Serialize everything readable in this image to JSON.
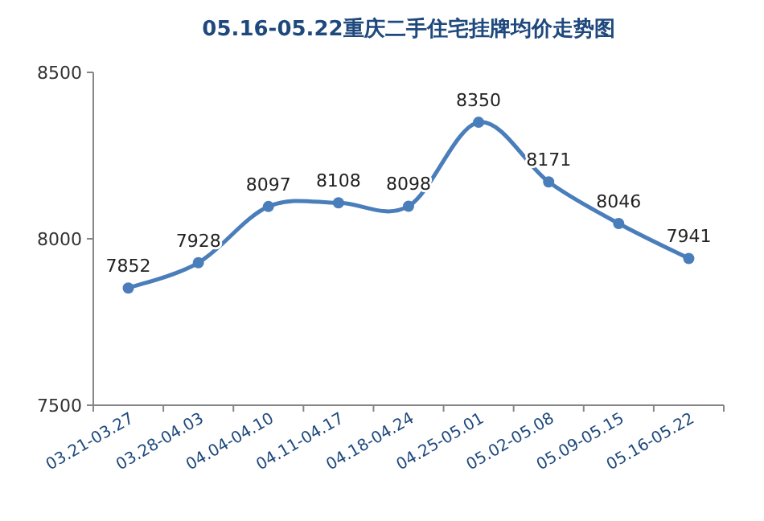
{
  "chart_data": {
    "type": "line",
    "title": "05.16-05.22重庆二手住宅挂牌均价走势图",
    "categories": [
      "03.21-03.27",
      "03.28-04.03",
      "04.04-04.10",
      "04.11-04.17",
      "04.18-04.24",
      "04.25-05.01",
      "05.02-05.08",
      "05.09-05.15",
      "05.16-05.22"
    ],
    "series": [
      {
        "color": "#4a7ebb",
        "values": [
          7852,
          7928,
          8097,
          8108,
          8098,
          8350,
          8171,
          8046,
          7941
        ]
      }
    ],
    "ylim": [
      7500,
      8500
    ],
    "yticks": [
      7500,
      8000,
      8500
    ],
    "marker": "circle",
    "data_labels": true
  }
}
